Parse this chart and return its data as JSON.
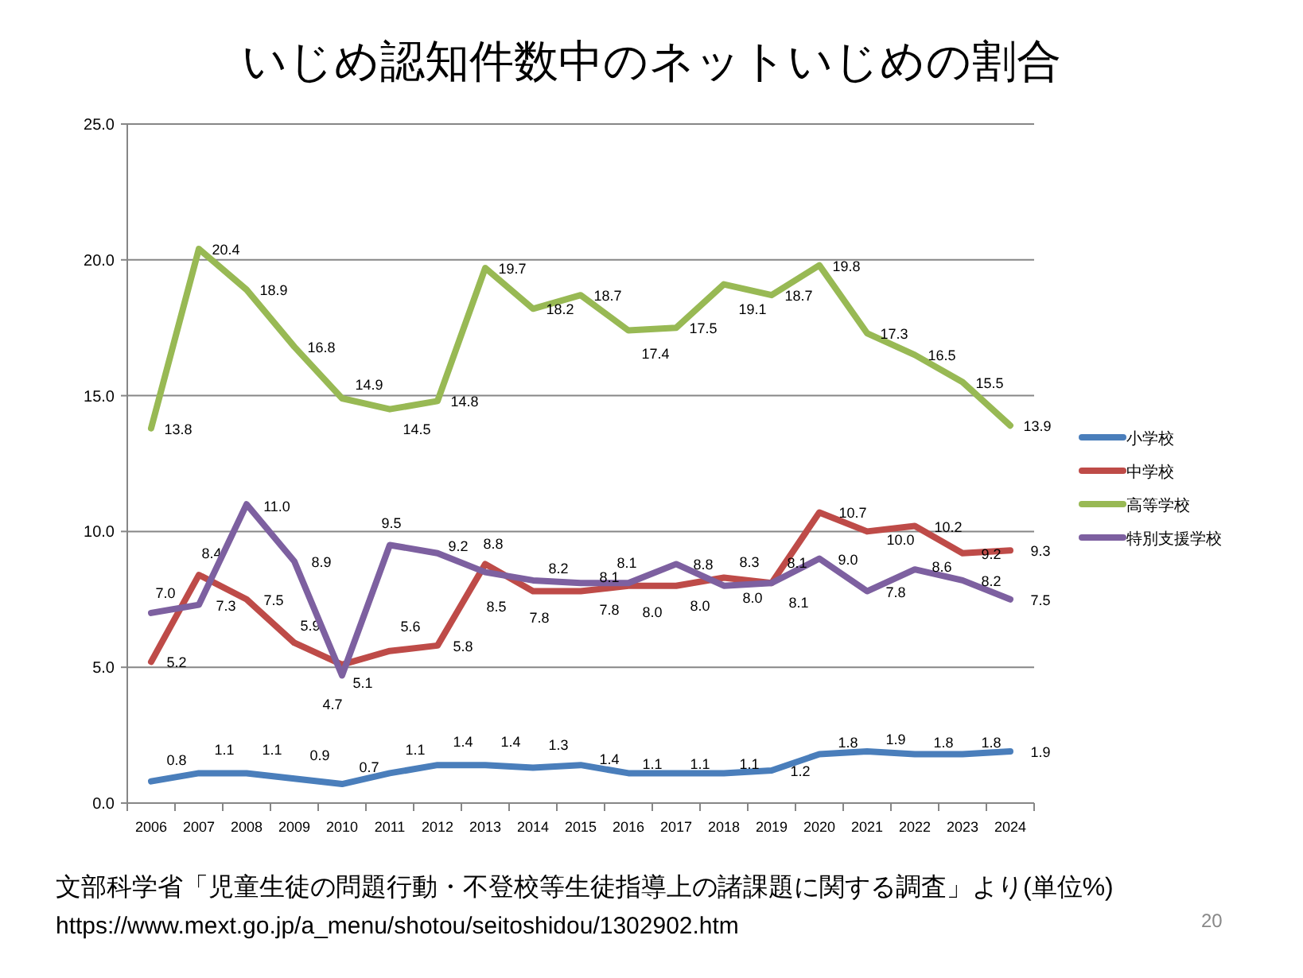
{
  "chart_data": {
    "type": "line",
    "title": "いじめ認知件数中のネットいじめの割合",
    "categories": [
      "2006",
      "2007",
      "2008",
      "2009",
      "2010",
      "2011",
      "2012",
      "2013",
      "2014",
      "2015",
      "2016",
      "2017",
      "2018",
      "2019",
      "2020",
      "2021",
      "2022",
      "2023",
      "2024"
    ],
    "series": [
      {
        "name": "小学校",
        "color": "#4a7ebb",
        "values": [
          0.8,
          1.1,
          1.1,
          0.9,
          0.7,
          1.1,
          1.4,
          1.4,
          1.3,
          1.4,
          1.1,
          1.1,
          1.1,
          1.2,
          1.8,
          1.9,
          1.8,
          1.8,
          1.9
        ],
        "value_labels": [
          "0.8",
          "1.1",
          "1.1",
          "0.9",
          "0.7",
          "1.1",
          "1.4",
          "1.4",
          "1.3",
          "1.4",
          "1.1",
          "1.1",
          "1.1",
          "1.2",
          "1.8",
          "1.9",
          "1.8",
          "1.8",
          "1.9"
        ]
      },
      {
        "name": "中学校",
        "color": "#be4b48",
        "values": [
          5.2,
          8.4,
          7.5,
          5.9,
          5.1,
          5.6,
          5.8,
          8.8,
          7.8,
          7.8,
          8.0,
          8.0,
          8.3,
          8.1,
          10.7,
          10.0,
          10.2,
          9.2,
          9.3
        ],
        "value_labels": [
          "5.2",
          "8.4",
          "7.5",
          "5.9",
          "5.1",
          "5.6",
          "5.8",
          "8.8",
          "7.8",
          "7.8",
          "8.0",
          "8.0",
          "8.3",
          "8.1",
          "10.7",
          "10.0",
          "10.2",
          "9.2",
          "9.3"
        ]
      },
      {
        "name": "高等学校",
        "color": "#98b954",
        "values": [
          13.8,
          20.4,
          18.9,
          16.8,
          14.9,
          14.5,
          14.8,
          19.7,
          18.2,
          18.7,
          17.4,
          17.5,
          19.1,
          18.7,
          19.8,
          17.3,
          16.5,
          15.5,
          13.9
        ],
        "value_labels": [
          "13.8",
          "20.4",
          "18.9",
          "16.8",
          "14.9",
          "14.5",
          "14.8",
          "19.7",
          "18.2",
          "18.7",
          "17.4",
          "17.5",
          "19.1",
          "18.7",
          "19.8",
          "17.3",
          "16.5",
          "15.5",
          "13.9"
        ]
      },
      {
        "name": "特別支援学校",
        "color": "#7d60a0",
        "values": [
          7.0,
          7.3,
          11.0,
          8.9,
          4.7,
          9.5,
          9.2,
          8.5,
          8.2,
          8.1,
          8.1,
          8.8,
          8.0,
          8.1,
          9.0,
          7.8,
          8.6,
          8.2,
          7.5
        ],
        "value_labels": [
          "7.0",
          "7.3",
          "11.0",
          "8.9",
          "4.7",
          "9.5",
          "9.2",
          "8.5",
          "8.2",
          "8.1",
          "8.1",
          "8.8",
          "8.0",
          "8.1",
          "9.0",
          "7.8",
          "8.6",
          "8.2",
          "7.5"
        ]
      }
    ],
    "ylim": [
      0,
      25
    ],
    "yticks": [
      {
        "value": 0,
        "label": "0.0"
      },
      {
        "value": 5,
        "label": "5.0"
      },
      {
        "value": 10,
        "label": "10.0"
      },
      {
        "value": 15,
        "label": "15.0"
      },
      {
        "value": 20,
        "label": "20.0"
      },
      {
        "value": 25,
        "label": "25.0"
      }
    ],
    "grid": "y",
    "legend": "right",
    "marker": "none",
    "line_style": "solid",
    "annotations": [
      "文部科学省「児童生徒の問題行動・不登校等生徒指導上の諸課題に関する調査」より(単位%)",
      "https://www.mext.go.jp/a_menu/shotou/seitoshidou/1302902.htm",
      "20"
    ]
  }
}
